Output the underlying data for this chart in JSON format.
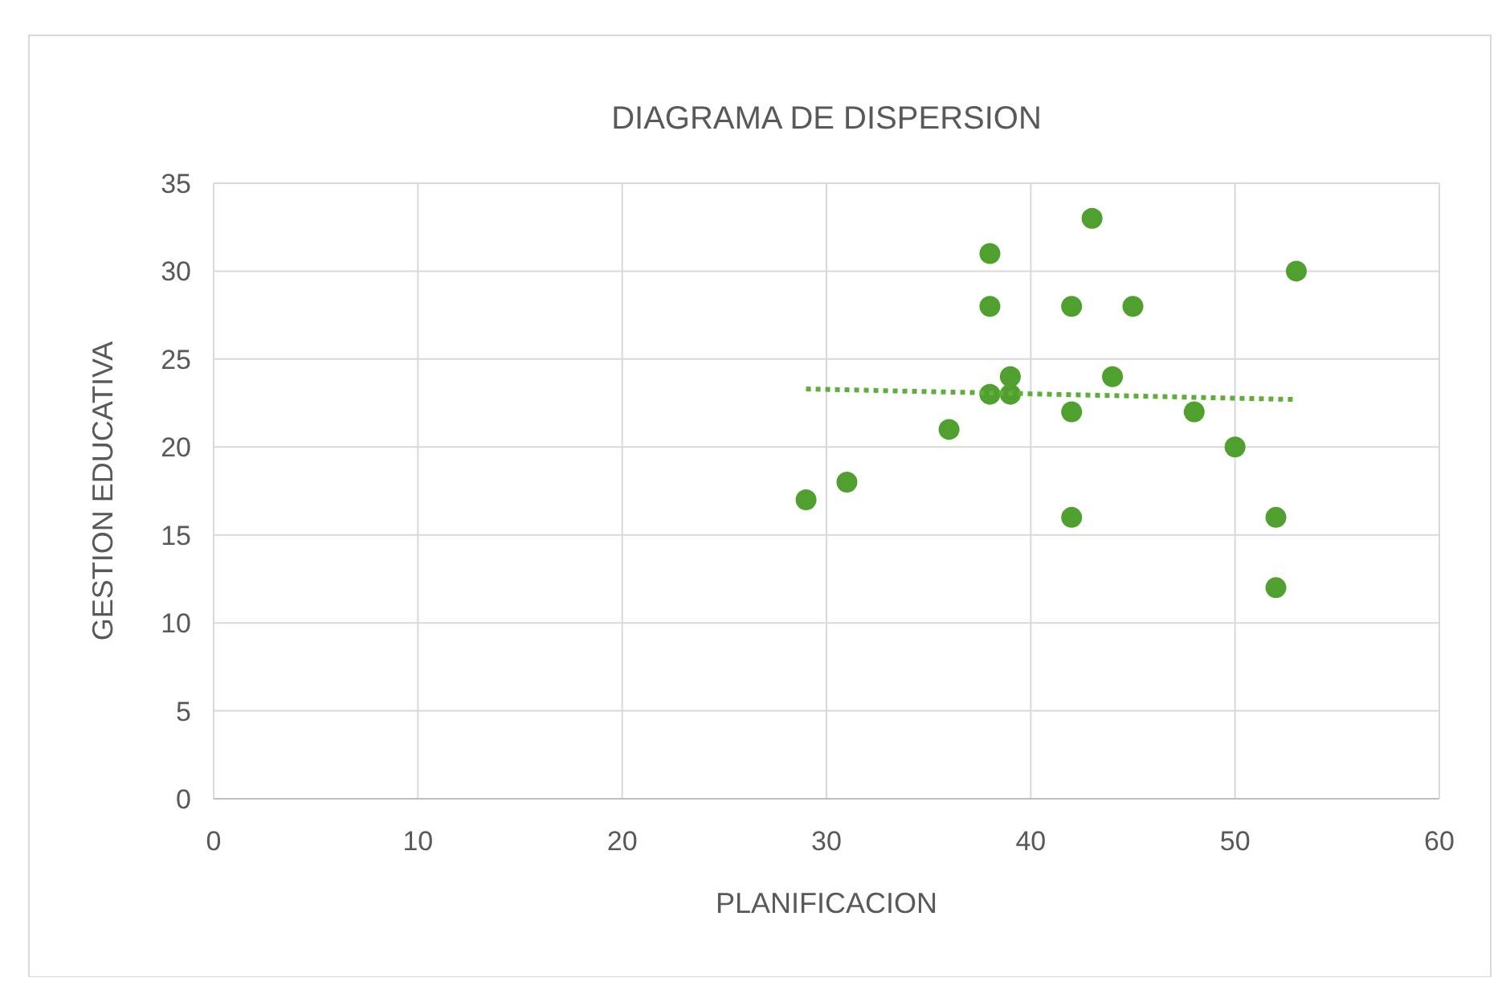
{
  "chart_data": {
    "type": "scatter",
    "title": "DIAGRAMA DE DISPERSION",
    "xlabel": "PLANIFICACION",
    "ylabel": "GESTION EDUCATIVA",
    "xlim": [
      0,
      60
    ],
    "xticks": [
      0,
      10,
      20,
      30,
      40,
      50,
      60
    ],
    "ylim": [
      0,
      35
    ],
    "yticks": [
      0,
      5,
      10,
      15,
      20,
      25,
      30,
      35
    ],
    "grid": true,
    "series": [
      {
        "marker": "circle",
        "color": "#50a030",
        "x": [
          29,
          31,
          36,
          38,
          38,
          38,
          39,
          39,
          42,
          42,
          42,
          43,
          44,
          45,
          48,
          50,
          52,
          52,
          53
        ],
        "values": [
          17,
          18,
          21,
          31,
          28,
          23,
          24,
          23,
          28,
          22,
          16,
          33,
          24,
          28,
          22,
          20,
          16,
          12,
          30
        ]
      },
      {
        "type": "line",
        "marker": "none",
        "color": "#5fae3a",
        "line_style": "dotted",
        "x": [
          29,
          53
        ],
        "values": [
          23.3,
          22.7
        ]
      }
    ]
  }
}
